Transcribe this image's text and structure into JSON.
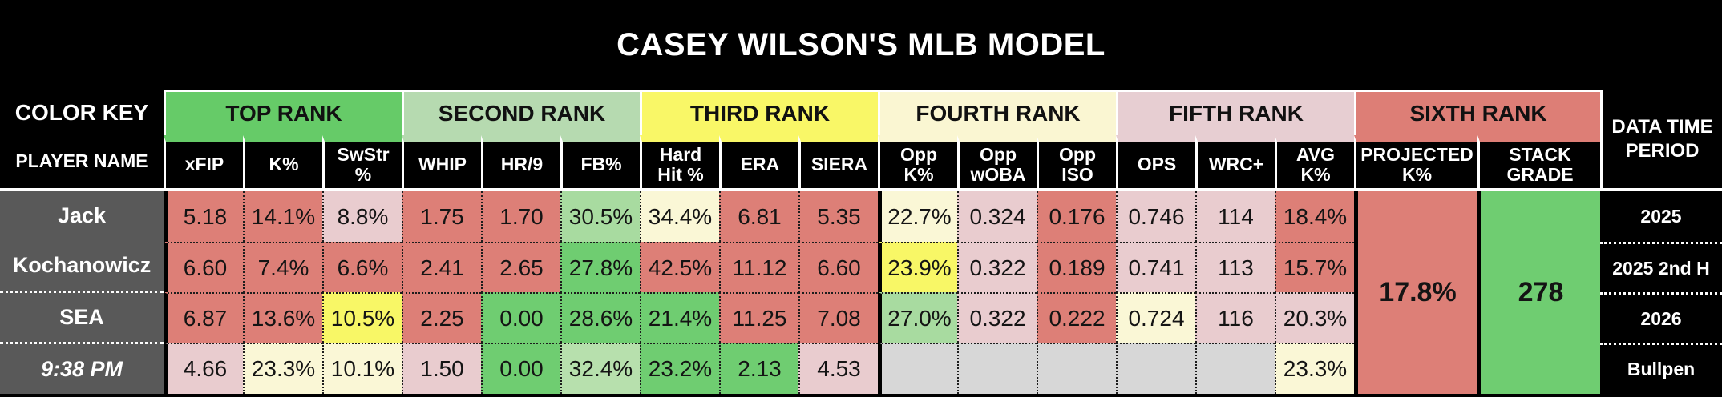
{
  "title": "CASEY WILSON'S MLB MODEL",
  "color_key": {
    "label": "COLOR KEY",
    "groups": [
      {
        "label": "TOP RANK",
        "color": "#66cb68",
        "span": 3
      },
      {
        "label": "SECOND RANK",
        "color": "#b6dab0",
        "span": 3
      },
      {
        "label": "THIRD RANK",
        "color": "#f9f767",
        "span": 3
      },
      {
        "label": "FOURTH RANK",
        "color": "#faf6d2",
        "span": 3
      },
      {
        "label": "FIFTH RANK",
        "color": "#e7ced2",
        "span": 3
      },
      {
        "label": "SIXTH RANK",
        "color": "#dd7e76",
        "span": 2
      }
    ]
  },
  "corner_label": "DATA TIME PERIOD",
  "columns": [
    "PLAYER NAME",
    "xFIP",
    "K%",
    "SwStr %",
    "WHIP",
    "HR/9",
    "FB%",
    "Hard Hit %",
    "ERA",
    "SIERA",
    "Opp K%",
    "Opp wOBA",
    "Opp ISO",
    "OPS",
    "WRC+",
    "AVG K%",
    "PROJECTED K%",
    "STACK GRADE"
  ],
  "palette": {
    "r": "#dd7f77",
    "p": "#e9cccf",
    "y": "#f8f766",
    "py": "#faf7d6",
    "g": "#6fcd71",
    "lg": "#a8dba0",
    "llg": "#b7e0ad",
    "x": "#d7d7d7"
  },
  "player": {
    "name_line1": "Jack",
    "name_line2": "Kochanowicz",
    "team": "SEA",
    "game_time": "9:38 PM"
  },
  "rows": [
    {
      "period": "2025",
      "cells": [
        {
          "v": "5.18",
          "c": "r"
        },
        {
          "v": "14.1%",
          "c": "r"
        },
        {
          "v": "8.8%",
          "c": "p"
        },
        {
          "v": "1.75",
          "c": "r"
        },
        {
          "v": "1.70",
          "c": "r"
        },
        {
          "v": "30.5%",
          "c": "lg"
        },
        {
          "v": "34.4%",
          "c": "py"
        },
        {
          "v": "6.81",
          "c": "r"
        },
        {
          "v": "5.35",
          "c": "r"
        },
        {
          "v": "22.7%",
          "c": "py"
        },
        {
          "v": "0.324",
          "c": "p"
        },
        {
          "v": "0.176",
          "c": "r"
        },
        {
          "v": "0.746",
          "c": "p"
        },
        {
          "v": "114",
          "c": "p"
        },
        {
          "v": "18.4%",
          "c": "r"
        }
      ]
    },
    {
      "period": "2025 2nd H",
      "cells": [
        {
          "v": "6.60",
          "c": "r"
        },
        {
          "v": "7.4%",
          "c": "r"
        },
        {
          "v": "6.6%",
          "c": "r"
        },
        {
          "v": "2.41",
          "c": "r"
        },
        {
          "v": "2.65",
          "c": "r"
        },
        {
          "v": "27.8%",
          "c": "g"
        },
        {
          "v": "42.5%",
          "c": "r"
        },
        {
          "v": "11.12",
          "c": "r"
        },
        {
          "v": "6.60",
          "c": "r"
        },
        {
          "v": "23.9%",
          "c": "y"
        },
        {
          "v": "0.322",
          "c": "p"
        },
        {
          "v": "0.189",
          "c": "r"
        },
        {
          "v": "0.741",
          "c": "p"
        },
        {
          "v": "113",
          "c": "p"
        },
        {
          "v": "15.7%",
          "c": "r"
        }
      ]
    },
    {
      "period": "2026",
      "cells": [
        {
          "v": "6.87",
          "c": "r"
        },
        {
          "v": "13.6%",
          "c": "r"
        },
        {
          "v": "10.5%",
          "c": "y"
        },
        {
          "v": "2.25",
          "c": "r"
        },
        {
          "v": "0.00",
          "c": "g"
        },
        {
          "v": "28.6%",
          "c": "g"
        },
        {
          "v": "21.4%",
          "c": "g"
        },
        {
          "v": "11.25",
          "c": "r"
        },
        {
          "v": "7.08",
          "c": "r"
        },
        {
          "v": "27.0%",
          "c": "lg"
        },
        {
          "v": "0.322",
          "c": "p"
        },
        {
          "v": "0.222",
          "c": "r"
        },
        {
          "v": "0.724",
          "c": "py"
        },
        {
          "v": "116",
          "c": "p"
        },
        {
          "v": "20.3%",
          "c": "p"
        }
      ]
    },
    {
      "period": "Bullpen",
      "cells": [
        {
          "v": "4.66",
          "c": "p"
        },
        {
          "v": "23.3%",
          "c": "py"
        },
        {
          "v": "10.1%",
          "c": "py"
        },
        {
          "v": "1.50",
          "c": "p"
        },
        {
          "v": "0.00",
          "c": "g"
        },
        {
          "v": "32.4%",
          "c": "llg"
        },
        {
          "v": "23.2%",
          "c": "g"
        },
        {
          "v": "2.13",
          "c": "g"
        },
        {
          "v": "4.53",
          "c": "p"
        },
        {
          "v": "",
          "c": "x"
        },
        {
          "v": "",
          "c": "x"
        },
        {
          "v": "",
          "c": "x"
        },
        {
          "v": "",
          "c": "x"
        },
        {
          "v": "",
          "c": "x"
        },
        {
          "v": "23.3%",
          "c": "py"
        }
      ]
    }
  ],
  "projected_k": {
    "value": "17.8%",
    "color": "r"
  },
  "stack_grade": {
    "value": "278",
    "color": "g"
  }
}
